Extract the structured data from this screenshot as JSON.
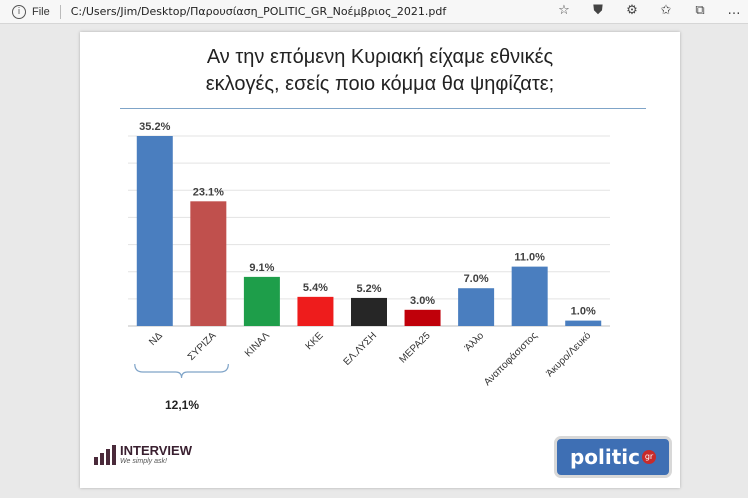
{
  "browser": {
    "file_label": "File",
    "url": "C:/Users/Jim/Desktop/Παρουσίαση_POLITIC_GR_Νοέμβριος_2021.pdf",
    "icons": [
      "info-icon",
      "star-add-icon",
      "shield-icon",
      "extensions-icon",
      "favorites-icon",
      "collections-icon",
      "more-icon"
    ]
  },
  "slide": {
    "title_line1": "Αν την επόμενη Κυριακή είχαμε εθνικές",
    "title_line2": "εκλογές, εσείς ποιο κόμμα θα ψηφίζατε;",
    "bracket_total": "12,1%",
    "logo_interview": {
      "name": "INTERVIEW",
      "tagline": "We simply ask!"
    },
    "logo_politic": {
      "word": "politic",
      "suffix": "gr"
    }
  },
  "chart_data": {
    "type": "bar",
    "title": "Αν την επόμενη Κυριακή είχαμε εθνικές εκλογές, εσείς ποιο κόμμα θα ψηφίζατε;",
    "categories": [
      "ΝΔ",
      "ΣΥΡΙΖΑ",
      "ΚΙΝΑΛ",
      "ΚΚΕ",
      "ΕΛ.ΛΥΣΗ",
      "ΜΕΡΑ25",
      "Άλλο",
      "Αναποφάσιστος",
      "Άκυρο/Λευκό"
    ],
    "values": [
      35.2,
      23.1,
      9.1,
      5.4,
      5.2,
      3.0,
      7.0,
      11.0,
      1.0
    ],
    "labels": [
      "35.2%",
      "23.1%",
      "9.1%",
      "5.4%",
      "5.2%",
      "3.0%",
      "7.0%",
      "11.0%",
      "1.0%"
    ],
    "colors": [
      "#4a7ebf",
      "#c0504d",
      "#1e9e4a",
      "#ee1c1c",
      "#262626",
      "#c0000a",
      "#4a7ebf",
      "#4a7ebf",
      "#4a7ebf"
    ],
    "ylim": [
      0,
      35.2
    ],
    "grid": true,
    "legend": "none"
  }
}
